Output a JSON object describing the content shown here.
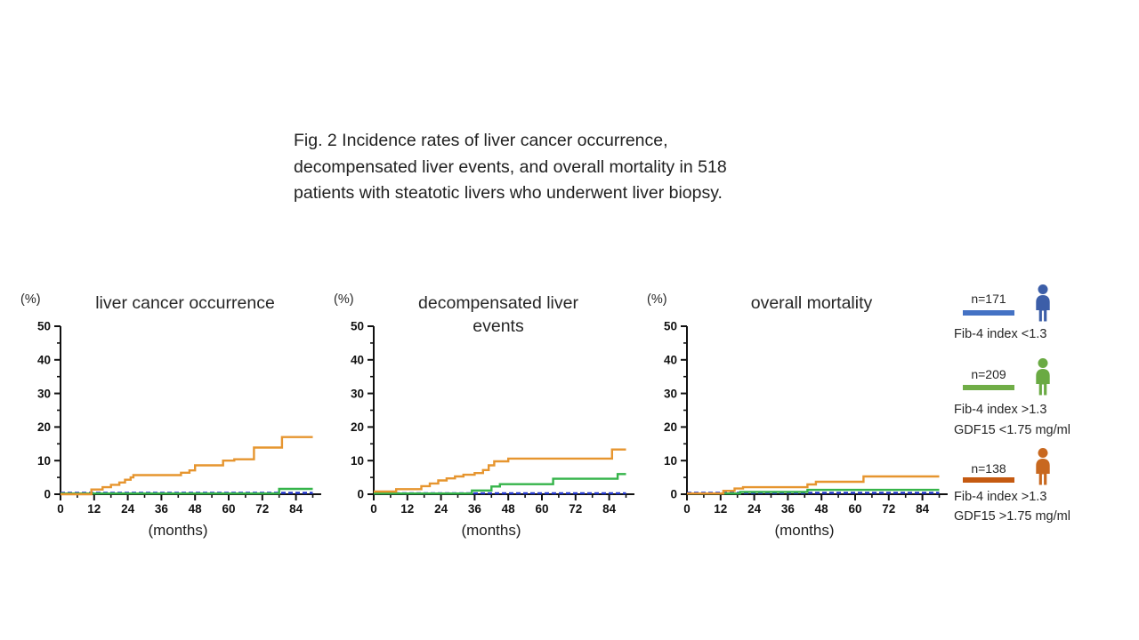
{
  "caption": "Fig. 2 Incidence rates of liver cancer occurrence,\ndecompensated liver events, and overall mortality in 518\npatients with steatotic livers who underwent liver biopsy.",
  "colors": {
    "series_blue": "#2438CC",
    "series_green": "#35B44A",
    "series_orange": "#E6952F",
    "legend_blue_bar": "#4472C4",
    "legend_green_bar": "#70AD47",
    "legend_orange_bar": "#C55A11",
    "person_blue": "#3C5EA8",
    "person_green": "#6AAA43",
    "person_orange": "#C8681F",
    "axis": "#111111"
  },
  "legend": {
    "items": [
      {
        "n": "n=171",
        "bar_color": "#4472C4",
        "person_color": "#3C5EA8",
        "line1": "Fib-4 index <1.3",
        "line2": ""
      },
      {
        "n": "n=209",
        "bar_color": "#70AD47",
        "person_color": "#6AAA43",
        "line1": "Fib-4 index >1.3",
        "line2": "GDF15 <1.75 mg/ml"
      },
      {
        "n": "n=138",
        "bar_color": "#C55A11",
        "person_color": "#C8681F",
        "line1": "Fib-4 index >1.3",
        "line2": "GDF15 >1.75 mg/ml"
      }
    ]
  },
  "chart_data": [
    {
      "type": "line",
      "title": "liver cancer occurrence",
      "percent_label": "(%)",
      "months_label": "(months)",
      "xlabel": "(months)",
      "ylabel": "(%)",
      "xlim": [
        0,
        93
      ],
      "ylim": [
        0,
        50
      ],
      "x_ticks": [
        0,
        12,
        24,
        36,
        48,
        60,
        72,
        84
      ],
      "x_minor_ticks": [
        6,
        18,
        30,
        42,
        54,
        66,
        78,
        90
      ],
      "y_ticks": [
        0,
        10,
        20,
        30,
        40,
        50
      ],
      "y_minor_ticks": [
        5,
        15,
        25,
        35,
        45
      ],
      "series": [
        {
          "name": "Fib-4 index <1.3",
          "color_key": "series_blue",
          "style": "dashed",
          "points": [
            [
              0,
              0.4
            ],
            [
              90,
              0.4
            ]
          ]
        },
        {
          "name": "Fib-4 index >1.3 GDF15 <1.75 mg/ml",
          "color_key": "series_green",
          "style": "solid",
          "points": [
            [
              0,
              0.2
            ],
            [
              78,
              0.2
            ],
            [
              78,
              1.6
            ],
            [
              90,
              1.6
            ]
          ]
        },
        {
          "name": "Fib-4 index >1.3 GDF15 >1.75 mg/ml",
          "color_key": "series_orange",
          "style": "solid",
          "points": [
            [
              0,
              0
            ],
            [
              11,
              0
            ],
            [
              11,
              1.4
            ],
            [
              15,
              1.4
            ],
            [
              15,
              2.1
            ],
            [
              18,
              2.1
            ],
            [
              18,
              2.8
            ],
            [
              21,
              2.8
            ],
            [
              21,
              3.5
            ],
            [
              23,
              3.5
            ],
            [
              23,
              4.3
            ],
            [
              25,
              4.3
            ],
            [
              25,
              5.0
            ],
            [
              26,
              5.0
            ],
            [
              26,
              5.7
            ],
            [
              43,
              5.7
            ],
            [
              43,
              6.4
            ],
            [
              46,
              6.4
            ],
            [
              46,
              7.1
            ],
            [
              48,
              7.1
            ],
            [
              48,
              8.6
            ],
            [
              58,
              8.6
            ],
            [
              58,
              10.0
            ],
            [
              62,
              10.0
            ],
            [
              62,
              10.4
            ],
            [
              69,
              10.4
            ],
            [
              69,
              13.9
            ],
            [
              79,
              13.9
            ],
            [
              79,
              17.0
            ],
            [
              90,
              17.0
            ]
          ]
        }
      ]
    },
    {
      "type": "line",
      "title": "decompensated liver\nevents",
      "percent_label": "(%)",
      "months_label": "(months)",
      "xlabel": "(months)",
      "ylabel": "(%)",
      "xlim": [
        0,
        93
      ],
      "ylim": [
        0,
        50
      ],
      "x_ticks": [
        0,
        12,
        24,
        36,
        48,
        60,
        72,
        84
      ],
      "x_minor_ticks": [
        6,
        18,
        30,
        42,
        54,
        66,
        78,
        90
      ],
      "y_ticks": [
        0,
        10,
        20,
        30,
        40,
        50
      ],
      "y_minor_ticks": [
        5,
        15,
        25,
        35,
        45
      ],
      "series": [
        {
          "name": "Fib-4 index <1.3",
          "color_key": "series_blue",
          "style": "dashed",
          "points": [
            [
              0,
              0.3
            ],
            [
              90,
              0.3
            ]
          ]
        },
        {
          "name": "Fib-4 index >1.3 GDF15 <1.75 mg/ml",
          "color_key": "series_green",
          "style": "solid",
          "points": [
            [
              0,
              0.2
            ],
            [
              35,
              0.2
            ],
            [
              35,
              1.1
            ],
            [
              42,
              1.1
            ],
            [
              42,
              2.3
            ],
            [
              45,
              2.3
            ],
            [
              45,
              3.0
            ],
            [
              64,
              3.0
            ],
            [
              64,
              4.6
            ],
            [
              87,
              4.6
            ],
            [
              87,
              6.0
            ],
            [
              90,
              6.0
            ]
          ]
        },
        {
          "name": "Fib-4 index >1.3 GDF15 >1.75 mg/ml",
          "color_key": "series_orange",
          "style": "solid",
          "points": [
            [
              0,
              0.8
            ],
            [
              8,
              0.8
            ],
            [
              8,
              1.5
            ],
            [
              17,
              1.5
            ],
            [
              17,
              2.4
            ],
            [
              20,
              2.4
            ],
            [
              20,
              3.2
            ],
            [
              23,
              3.2
            ],
            [
              23,
              4.1
            ],
            [
              26,
              4.1
            ],
            [
              26,
              4.7
            ],
            [
              29,
              4.7
            ],
            [
              29,
              5.3
            ],
            [
              32,
              5.3
            ],
            [
              32,
              5.8
            ],
            [
              36,
              5.8
            ],
            [
              36,
              6.3
            ],
            [
              39,
              6.3
            ],
            [
              39,
              7.2
            ],
            [
              41,
              7.2
            ],
            [
              41,
              8.6
            ],
            [
              43,
              8.6
            ],
            [
              43,
              9.8
            ],
            [
              48,
              9.8
            ],
            [
              48,
              10.6
            ],
            [
              85,
              10.6
            ],
            [
              85,
              13.3
            ],
            [
              90,
              13.3
            ]
          ]
        }
      ]
    },
    {
      "type": "line",
      "title": "overall mortality",
      "percent_label": "(%)",
      "months_label": "(months)",
      "xlabel": "(months)",
      "ylabel": "(%)",
      "xlim": [
        0,
        93
      ],
      "ylim": [
        0,
        50
      ],
      "x_ticks": [
        0,
        12,
        24,
        36,
        48,
        60,
        72,
        84
      ],
      "x_minor_ticks": [
        6,
        18,
        30,
        42,
        54,
        66,
        78,
        90
      ],
      "y_ticks": [
        0,
        10,
        20,
        30,
        40,
        50
      ],
      "y_minor_ticks": [
        5,
        15,
        25,
        35,
        45
      ],
      "series": [
        {
          "name": "Fib-4 index <1.3",
          "color_key": "series_blue",
          "style": "dashed",
          "points": [
            [
              0,
              0.4
            ],
            [
              90,
              0.4
            ]
          ]
        },
        {
          "name": "Fib-4 index >1.3 GDF15 <1.75 mg/ml",
          "color_key": "series_green",
          "style": "solid",
          "points": [
            [
              0,
              0.2
            ],
            [
              19,
              0.2
            ],
            [
              19,
              0.7
            ],
            [
              43,
              0.7
            ],
            [
              43,
              1.3
            ],
            [
              90,
              1.3
            ]
          ]
        },
        {
          "name": "Fib-4 index >1.3 GDF15 >1.75 mg/ml",
          "color_key": "series_orange",
          "style": "solid",
          "points": [
            [
              0,
              0.2
            ],
            [
              13,
              0.2
            ],
            [
              13,
              1.0
            ],
            [
              17,
              1.0
            ],
            [
              17,
              1.7
            ],
            [
              20,
              1.7
            ],
            [
              20,
              2.1
            ],
            [
              43,
              2.1
            ],
            [
              43,
              2.9
            ],
            [
              46,
              2.9
            ],
            [
              46,
              3.7
            ],
            [
              63,
              3.7
            ],
            [
              63,
              5.3
            ],
            [
              90,
              5.3
            ]
          ]
        }
      ]
    }
  ]
}
